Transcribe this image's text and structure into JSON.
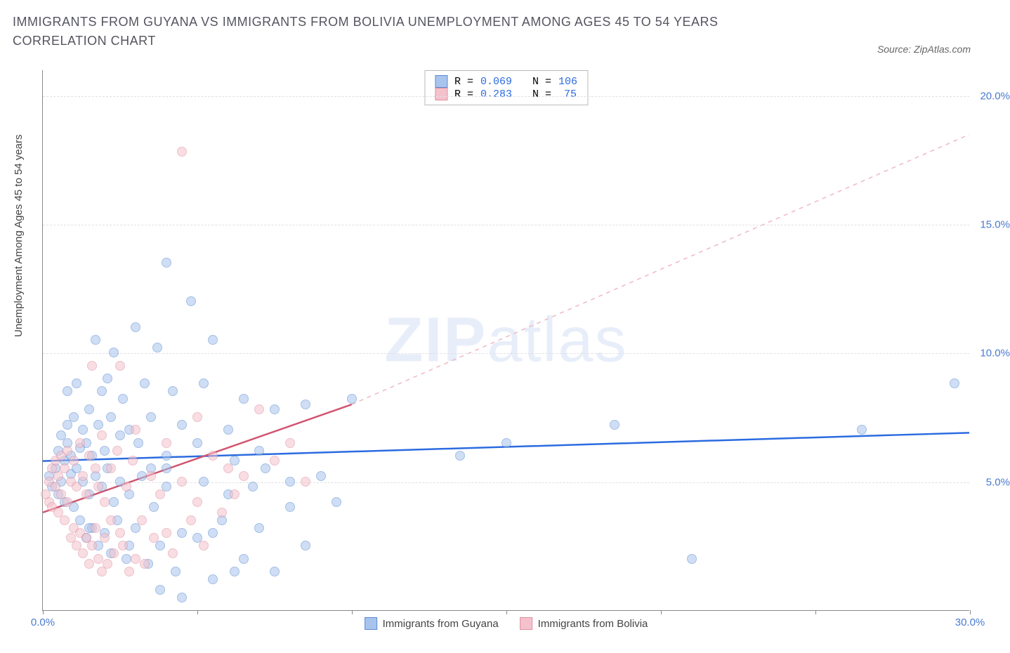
{
  "title": "IMMIGRANTS FROM GUYANA VS IMMIGRANTS FROM BOLIVIA UNEMPLOYMENT AMONG AGES 45 TO 54 YEARS CORRELATION CHART",
  "source": "Source: ZipAtlas.com",
  "watermark_zip": "ZIP",
  "watermark_atlas": "atlas",
  "chart": {
    "type": "scatter",
    "ylabel": "Unemployment Among Ages 45 to 54 years",
    "xlim": [
      0,
      30
    ],
    "ylim": [
      0,
      21
    ],
    "xticks": [
      0,
      5,
      10,
      15,
      20,
      25,
      30
    ],
    "xtick_labels": [
      "0.0%",
      "",
      "",
      "",
      "",
      "",
      "30.0%"
    ],
    "yticks": [
      5,
      10,
      15,
      20
    ],
    "ytick_labels": [
      "5.0%",
      "10.0%",
      "15.0%",
      "20.0%"
    ],
    "background_color": "#ffffff",
    "grid_color": "#e0e0e5",
    "axis_color": "#888888",
    "tick_label_color": "#4a7bd0",
    "marker_radius": 7,
    "series": [
      {
        "name": "Immigrants from Guyana",
        "color_fill": "#a8c4ec",
        "color_stroke": "#5b8bd4",
        "R": "0.069",
        "N": "106",
        "trend": {
          "x1": 0,
          "y1": 5.8,
          "x2": 30,
          "y2": 6.9,
          "color": "#2b6be0",
          "width": 2.5,
          "dash": "none"
        },
        "points": [
          [
            0.2,
            5.2
          ],
          [
            0.3,
            4.8
          ],
          [
            0.4,
            5.5
          ],
          [
            0.5,
            4.5
          ],
          [
            0.5,
            6.2
          ],
          [
            0.6,
            5.0
          ],
          [
            0.6,
            6.8
          ],
          [
            0.7,
            4.2
          ],
          [
            0.7,
            5.8
          ],
          [
            0.8,
            6.5
          ],
          [
            0.8,
            7.2
          ],
          [
            0.9,
            5.3
          ],
          [
            0.9,
            6.0
          ],
          [
            1.0,
            4.0
          ],
          [
            1.0,
            7.5
          ],
          [
            1.1,
            5.5
          ],
          [
            1.1,
            8.8
          ],
          [
            1.2,
            3.5
          ],
          [
            1.2,
            6.3
          ],
          [
            1.3,
            5.0
          ],
          [
            1.3,
            7.0
          ],
          [
            1.4,
            2.8
          ],
          [
            1.4,
            6.5
          ],
          [
            1.5,
            4.5
          ],
          [
            1.5,
            7.8
          ],
          [
            1.6,
            3.2
          ],
          [
            1.6,
            6.0
          ],
          [
            1.7,
            5.2
          ],
          [
            1.7,
            10.5
          ],
          [
            1.8,
            2.5
          ],
          [
            1.8,
            7.2
          ],
          [
            1.9,
            4.8
          ],
          [
            1.9,
            8.5
          ],
          [
            2.0,
            3.0
          ],
          [
            2.0,
            6.2
          ],
          [
            2.1,
            5.5
          ],
          [
            2.1,
            9.0
          ],
          [
            2.2,
            2.2
          ],
          [
            2.2,
            7.5
          ],
          [
            2.3,
            4.2
          ],
          [
            2.3,
            10.0
          ],
          [
            2.4,
            3.5
          ],
          [
            2.5,
            6.8
          ],
          [
            2.5,
            5.0
          ],
          [
            2.6,
            8.2
          ],
          [
            2.7,
            2.0
          ],
          [
            2.8,
            7.0
          ],
          [
            2.8,
            4.5
          ],
          [
            3.0,
            11.0
          ],
          [
            3.0,
            3.2
          ],
          [
            3.1,
            6.5
          ],
          [
            3.2,
            5.2
          ],
          [
            3.3,
            8.8
          ],
          [
            3.4,
            1.8
          ],
          [
            3.5,
            7.5
          ],
          [
            3.6,
            4.0
          ],
          [
            3.7,
            10.2
          ],
          [
            3.8,
            2.5
          ],
          [
            3.8,
            0.8
          ],
          [
            4.0,
            6.0
          ],
          [
            4.0,
            5.5
          ],
          [
            4.0,
            13.5
          ],
          [
            4.2,
            8.5
          ],
          [
            4.3,
            1.5
          ],
          [
            4.5,
            7.2
          ],
          [
            4.5,
            3.0
          ],
          [
            4.5,
            0.5
          ],
          [
            4.8,
            12.0
          ],
          [
            5.0,
            2.8
          ],
          [
            5.0,
            6.5
          ],
          [
            5.2,
            5.0
          ],
          [
            5.2,
            8.8
          ],
          [
            5.5,
            1.2
          ],
          [
            5.5,
            10.5
          ],
          [
            5.8,
            3.5
          ],
          [
            6.0,
            7.0
          ],
          [
            6.0,
            4.5
          ],
          [
            6.2,
            5.8
          ],
          [
            6.5,
            2.0
          ],
          [
            6.5,
            8.2
          ],
          [
            6.8,
            4.8
          ],
          [
            7.0,
            3.2
          ],
          [
            7.0,
            6.2
          ],
          [
            7.2,
            5.5
          ],
          [
            7.5,
            1.5
          ],
          [
            7.5,
            7.8
          ],
          [
            8.0,
            4.0
          ],
          [
            8.0,
            5.0
          ],
          [
            8.5,
            8.0
          ],
          [
            8.5,
            2.5
          ],
          [
            9.0,
            5.2
          ],
          [
            9.5,
            4.2
          ],
          [
            10.0,
            8.2
          ],
          [
            13.5,
            6.0
          ],
          [
            15.0,
            6.5
          ],
          [
            18.5,
            7.2
          ],
          [
            21.0,
            2.0
          ],
          [
            26.5,
            7.0
          ],
          [
            29.5,
            8.8
          ],
          [
            5.5,
            3.0
          ],
          [
            6.2,
            1.5
          ],
          [
            4.0,
            4.8
          ],
          [
            3.5,
            5.5
          ],
          [
            2.8,
            2.5
          ],
          [
            1.5,
            3.2
          ],
          [
            0.8,
            8.5
          ]
        ]
      },
      {
        "name": "Immigrants from Bolivia",
        "color_fill": "#f4c2cc",
        "color_stroke": "#e08fa0",
        "R": "0.283",
        "N": "75",
        "trend_solid": {
          "x1": 0,
          "y1": 3.8,
          "x2": 10,
          "y2": 8.0,
          "color": "#d15570",
          "width": 2.5
        },
        "trend_dash": {
          "x1": 10,
          "y1": 8.0,
          "x2": 30,
          "y2": 18.5,
          "color": "#f0b8c4",
          "width": 1.5
        },
        "points": [
          [
            0.1,
            4.5
          ],
          [
            0.2,
            5.0
          ],
          [
            0.2,
            4.2
          ],
          [
            0.3,
            5.5
          ],
          [
            0.3,
            4.0
          ],
          [
            0.4,
            4.8
          ],
          [
            0.4,
            5.8
          ],
          [
            0.5,
            3.8
          ],
          [
            0.5,
            5.2
          ],
          [
            0.6,
            4.5
          ],
          [
            0.6,
            6.0
          ],
          [
            0.7,
            3.5
          ],
          [
            0.7,
            5.5
          ],
          [
            0.8,
            4.2
          ],
          [
            0.8,
            6.2
          ],
          [
            0.9,
            2.8
          ],
          [
            0.9,
            5.0
          ],
          [
            1.0,
            3.2
          ],
          [
            1.0,
            5.8
          ],
          [
            1.1,
            2.5
          ],
          [
            1.1,
            4.8
          ],
          [
            1.2,
            3.0
          ],
          [
            1.2,
            6.5
          ],
          [
            1.3,
            2.2
          ],
          [
            1.3,
            5.2
          ],
          [
            1.4,
            2.8
          ],
          [
            1.4,
            4.5
          ],
          [
            1.5,
            1.8
          ],
          [
            1.5,
            6.0
          ],
          [
            1.6,
            2.5
          ],
          [
            1.6,
            9.5
          ],
          [
            1.7,
            3.2
          ],
          [
            1.7,
            5.5
          ],
          [
            1.8,
            2.0
          ],
          [
            1.8,
            4.8
          ],
          [
            1.9,
            1.5
          ],
          [
            1.9,
            6.8
          ],
          [
            2.0,
            2.8
          ],
          [
            2.0,
            4.2
          ],
          [
            2.1,
            1.8
          ],
          [
            2.2,
            5.5
          ],
          [
            2.2,
            3.5
          ],
          [
            2.3,
            2.2
          ],
          [
            2.4,
            6.2
          ],
          [
            2.5,
            3.0
          ],
          [
            2.5,
            9.5
          ],
          [
            2.6,
            2.5
          ],
          [
            2.7,
            4.8
          ],
          [
            2.8,
            1.5
          ],
          [
            2.9,
            5.8
          ],
          [
            3.0,
            2.0
          ],
          [
            3.0,
            7.0
          ],
          [
            3.2,
            3.5
          ],
          [
            3.3,
            1.8
          ],
          [
            3.5,
            5.2
          ],
          [
            3.6,
            2.8
          ],
          [
            3.8,
            4.5
          ],
          [
            4.0,
            3.0
          ],
          [
            4.0,
            6.5
          ],
          [
            4.2,
            2.2
          ],
          [
            4.5,
            5.0
          ],
          [
            4.5,
            17.8
          ],
          [
            4.8,
            3.5
          ],
          [
            5.0,
            4.2
          ],
          [
            5.0,
            7.5
          ],
          [
            5.2,
            2.5
          ],
          [
            5.5,
            6.0
          ],
          [
            5.8,
            3.8
          ],
          [
            6.0,
            5.5
          ],
          [
            6.2,
            4.5
          ],
          [
            6.5,
            5.2
          ],
          [
            7.0,
            7.8
          ],
          [
            7.5,
            5.8
          ],
          [
            8.0,
            6.5
          ],
          [
            8.5,
            5.0
          ]
        ]
      }
    ],
    "legend": {
      "series1_label": "Immigrants from Guyana",
      "series2_label": "Immigrants from Bolivia"
    },
    "stats_labels": {
      "R": "R =",
      "N": "N ="
    }
  }
}
